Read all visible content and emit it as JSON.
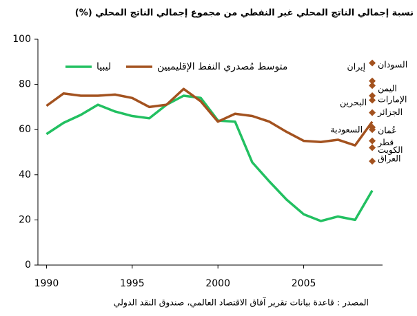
{
  "chart_data": {
    "type": "line",
    "title": "نسبة إجمالي الناتج المحلي غير النفطي من  مجموع إجمالي الناتج المحلي (%)",
    "source": "المصدر : قاعدة بيانات تقرير آفاق الاقتصاد العالمي، صندوق النقد الدولي",
    "x": [
      1990,
      1991,
      1992,
      1993,
      1994,
      1995,
      1996,
      1997,
      1998,
      1999,
      2000,
      2001,
      2002,
      2003,
      2004,
      2005,
      2006,
      2007,
      2008,
      2009
    ],
    "series": [
      {
        "name": "ليبيا",
        "color": "#22c061",
        "values": [
          58,
          63,
          66.5,
          71,
          68,
          66,
          65,
          71,
          75,
          74,
          64,
          63.5,
          45.5,
          37,
          29,
          22.5,
          19.5,
          21.5,
          20,
          33
        ]
      },
      {
        "name": "متوسط مُصدري النفط الإقليميين",
        "color": "#a3521f",
        "values": [
          70.5,
          76,
          75,
          75,
          75.5,
          74,
          70,
          71,
          78,
          72.5,
          63.5,
          67,
          66,
          63.5,
          59,
          55,
          54.5,
          55.5,
          53,
          63.5
        ]
      }
    ],
    "markers": {
      "x": 2009,
      "color": "#a3521f",
      "categories": [
        "السودان",
        "إيران",
        "اليمن",
        "الإمارات",
        "البحرين",
        "الجزائر",
        "عُمان",
        "قطر",
        "الكويت",
        "السعودية",
        "العراق"
      ],
      "values": [
        89.5,
        81.5,
        79.5,
        75,
        73,
        67.5,
        60,
        55,
        52,
        61,
        46
      ]
    },
    "xlim": [
      1989.5,
      2009.6
    ],
    "xticks": [
      1990,
      1995,
      2000,
      2005
    ],
    "ylim": [
      0,
      100
    ],
    "yticks": [
      0,
      20,
      40,
      60,
      80,
      100
    ]
  }
}
